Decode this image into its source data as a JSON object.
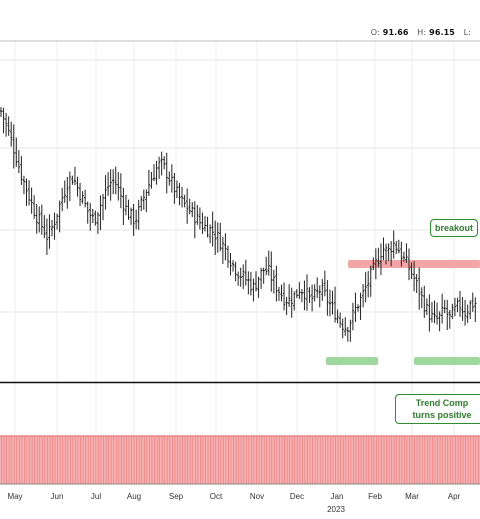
{
  "header": {
    "o_label": "O:",
    "o_value": "91.66",
    "h_label": "H:",
    "h_value": "96.15",
    "l_label": "L:"
  },
  "annotations": {
    "breakout": "breakout",
    "trend_line1": "Trend Comp",
    "trend_line2": "turns positive"
  },
  "colors": {
    "resistance_band": "#f4a6a6",
    "support_band": "#9fd89f",
    "indicator_fill": "#f7b3b3",
    "indicator_line": "#e57373",
    "callout_border": "#2e8b2e",
    "bars": "#222222"
  },
  "chart_data": {
    "type": "ohlc",
    "x_labels": [
      "May",
      "Jun",
      "Jul",
      "Aug",
      "Sep",
      "Oct",
      "Nov",
      "Dec",
      "Jan",
      "Feb",
      "Mar",
      "Apr"
    ],
    "year_label": "2023",
    "ylim": [
      86,
      108
    ],
    "closes": [
      103.5,
      102.6,
      101.6,
      100.5,
      99.3,
      98.4,
      97.4,
      96.6,
      96.0,
      95.3,
      96.0,
      97.0,
      98.0,
      99.0,
      99.2,
      98.4,
      97.6,
      96.9,
      96.4,
      97.2,
      98.0,
      98.8,
      99.0,
      98.2,
      97.3,
      96.7,
      96.4,
      97.2,
      98.2,
      99.0,
      99.7,
      100.1,
      99.6,
      98.9,
      98.2,
      97.6,
      97.3,
      96.9,
      96.5,
      96.1,
      95.9,
      95.7,
      95.3,
      94.8,
      94.2,
      93.5,
      93.0,
      92.7,
      92.4,
      92.0,
      92.7,
      93.2,
      93.0,
      92.3,
      91.8,
      91.3,
      91.2,
      91.5,
      92.0,
      91.7,
      91.2,
      91.5,
      91.9,
      91.4,
      90.8,
      90.3,
      89.7,
      89.4,
      90.0,
      90.8,
      91.4,
      92.2,
      93.0,
      93.8,
      94.6,
      94.3,
      94.9,
      94.6,
      93.9,
      93.4,
      92.7,
      91.9,
      91.0,
      90.3,
      89.9,
      90.0,
      90.6,
      90.0,
      90.5,
      90.9,
      90.4,
      90.9,
      91.0
    ]
  }
}
